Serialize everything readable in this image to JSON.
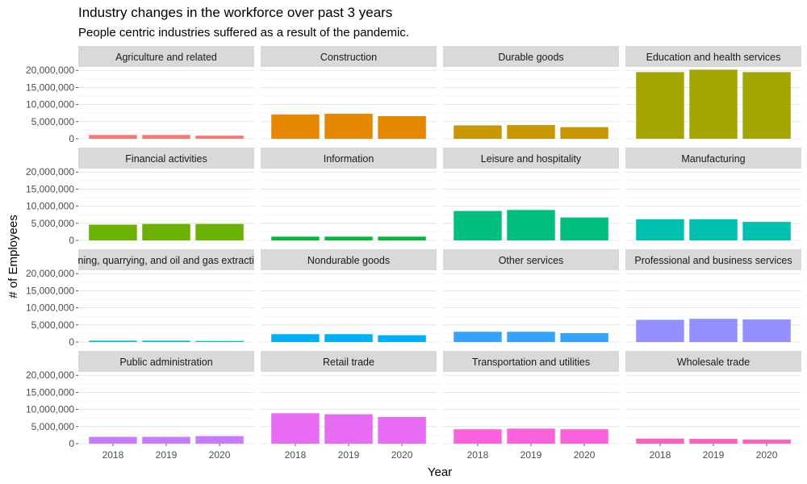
{
  "chart_data": {
    "type": "bar",
    "title": "Industry changes in the workforce over past 3 years",
    "subtitle": "People centric industries suffered as a result of the pandemic.",
    "xlabel": "Year",
    "ylabel": "# of Employees",
    "categories": [
      "2018",
      "2019",
      "2020"
    ],
    "ylim": [
      0,
      21000000
    ],
    "yticks": [
      0,
      5000000,
      10000000,
      15000000,
      20000000
    ],
    "ytick_labels": [
      "0",
      "5,000,000",
      "10,000,000",
      "15,000,000",
      "20,000,000"
    ],
    "facet_columns": 4,
    "grid": true,
    "legend": "none",
    "series": [
      {
        "name": "Agriculture and related",
        "color": "#F8766D",
        "values": [
          1100000,
          1100000,
          900000
        ]
      },
      {
        "name": "Construction",
        "color": "#E58700",
        "values": [
          7100000,
          7300000,
          6600000
        ]
      },
      {
        "name": "Durable goods",
        "color": "#C99800",
        "values": [
          3900000,
          4000000,
          3400000
        ]
      },
      {
        "name": "Education and health services",
        "color": "#A3A500",
        "values": [
          19500000,
          20200000,
          19500000
        ]
      },
      {
        "name": "Financial activities",
        "color": "#6BB100",
        "values": [
          4600000,
          4800000,
          4800000
        ]
      },
      {
        "name": "Information",
        "color": "#00BA38",
        "values": [
          1100000,
          1100000,
          1100000
        ]
      },
      {
        "name": "Leisure and hospitality",
        "color": "#00BF7D",
        "values": [
          8600000,
          8900000,
          6700000
        ]
      },
      {
        "name": "Manufacturing",
        "color": "#00C0AF",
        "values": [
          6200000,
          6200000,
          5400000
        ]
      },
      {
        "name": "Mining, quarrying, and oil and gas extraction",
        "color": "#00BCD8",
        "values": [
          400000,
          400000,
          300000
        ]
      },
      {
        "name": "Nondurable goods",
        "color": "#00B0F6",
        "values": [
          2300000,
          2300000,
          2000000
        ]
      },
      {
        "name": "Other services",
        "color": "#35A2FF",
        "values": [
          3000000,
          3000000,
          2600000
        ]
      },
      {
        "name": "Professional and business services",
        "color": "#9590FF",
        "values": [
          6500000,
          6800000,
          6600000
        ]
      },
      {
        "name": "Public administration",
        "color": "#C77CFF",
        "values": [
          2000000,
          2000000,
          2200000
        ]
      },
      {
        "name": "Retail trade",
        "color": "#E76BF3",
        "values": [
          8900000,
          8600000,
          7800000
        ]
      },
      {
        "name": "Transportation and utilities",
        "color": "#FA62DB",
        "values": [
          4200000,
          4400000,
          4200000
        ]
      },
      {
        "name": "Wholesale trade",
        "color": "#FF62BC",
        "values": [
          1500000,
          1400000,
          1200000
        ]
      }
    ]
  }
}
